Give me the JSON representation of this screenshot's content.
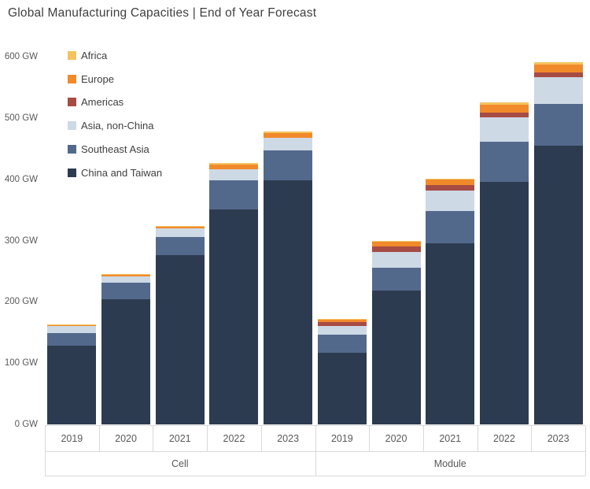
{
  "chart_data": {
    "type": "bar",
    "subtype": "stacked-grouped",
    "title": "Global Manufacturing Capacities | End of Year Forecast",
    "unit": "GW",
    "ylim": [
      0,
      600
    ],
    "y_ticks": [
      0,
      100,
      200,
      300,
      400,
      500,
      600
    ],
    "y_tick_suffix": " GW",
    "grid": false,
    "legend_position": "upper-left-inside",
    "groups": [
      {
        "label": "Cell",
        "years": [
          "2019",
          "2020",
          "2021",
          "2022",
          "2023"
        ]
      },
      {
        "label": "Module",
        "years": [
          "2019",
          "2020",
          "2021",
          "2022",
          "2023"
        ]
      }
    ],
    "stack_order_bottom_to_top": [
      "China and Taiwan",
      "Southeast Asia",
      "Asia, non-China",
      "Americas",
      "Europe",
      "Africa"
    ],
    "series": [
      {
        "name": "China and Taiwan",
        "color": "#2d3b50",
        "values": [
          129,
          204,
          276,
          351,
          398,
          117,
          218,
          296,
          396,
          455
        ]
      },
      {
        "name": "Southeast Asia",
        "color": "#53698c",
        "values": [
          20,
          27,
          30,
          47,
          49,
          29,
          38,
          52,
          65,
          68
        ]
      },
      {
        "name": "Asia, non-China",
        "color": "#cdd9e5",
        "values": [
          11,
          11,
          14,
          18,
          21,
          15,
          26,
          33,
          40,
          43
        ]
      },
      {
        "name": "Americas",
        "color": "#a74b45",
        "values": [
          0,
          0,
          0,
          0,
          0,
          6,
          8,
          9,
          8,
          8
        ]
      },
      {
        "name": "Europe",
        "color": "#f18a2b",
        "values": [
          2,
          3,
          2,
          8,
          7,
          4,
          8,
          9,
          12,
          13
        ]
      },
      {
        "name": "Africa",
        "color": "#f4c35f",
        "values": [
          1,
          1,
          2,
          3,
          3,
          1,
          2,
          2,
          5,
          4
        ]
      }
    ],
    "totals": [
      163,
      246,
      324,
      427,
      478,
      172,
      300,
      401,
      526,
      591
    ],
    "legend_order_top_to_bottom": [
      "Africa",
      "Europe",
      "Americas",
      "Asia, non-China",
      "Southeast Asia",
      "China and Taiwan"
    ]
  },
  "colors": {
    "axis_line": "#d9d9d9",
    "tick_text": "#595959",
    "title_text": "#3f3f3f",
    "legend_text": "#404040",
    "background": "#ffffff"
  }
}
